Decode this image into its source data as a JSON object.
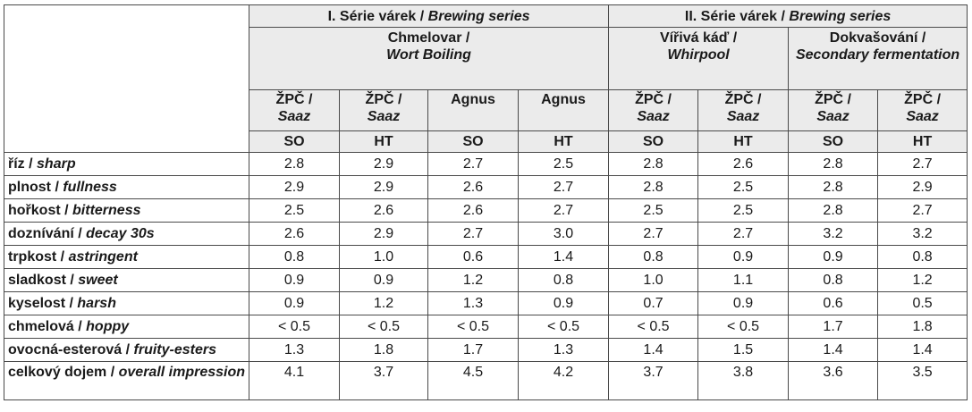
{
  "groups": [
    {
      "label": "I. Série várek",
      "label_en": "Brewing series"
    },
    {
      "label": "II. Série várek",
      "label_en": "Brewing series"
    }
  ],
  "stages": [
    {
      "label": "Chmelovar /",
      "label_en": "Wort Boiling"
    },
    {
      "label": "Vířivá káď /",
      "label_en": "Whirpool"
    },
    {
      "label": "Dokvašování /",
      "label_en": "Secondary fermentation"
    }
  ],
  "varieties": [
    {
      "cz": "ŽPČ /",
      "en": "Saaz"
    },
    {
      "cz": "ŽPČ /",
      "en": "Saaz"
    },
    {
      "cz": "Agnus",
      "en": ""
    },
    {
      "cz": "Agnus",
      "en": ""
    },
    {
      "cz": "ŽPČ /",
      "en": "Saaz"
    },
    {
      "cz": "ŽPČ /",
      "en": "Saaz"
    },
    {
      "cz": "ŽPČ /",
      "en": "Saaz"
    },
    {
      "cz": "ŽPČ /",
      "en": "Saaz"
    }
  ],
  "methods": [
    "SO",
    "HT",
    "SO",
    "HT",
    "SO",
    "HT",
    "SO",
    "HT"
  ],
  "rows": [
    {
      "cz": "říz /",
      "en": "sharp",
      "values": [
        "2.8",
        "2.9",
        "2.7",
        "2.5",
        "2.8",
        "2.6",
        "2.8",
        "2.7"
      ]
    },
    {
      "cz": "plnost /",
      "en": "fullness",
      "values": [
        "2.9",
        "2.9",
        "2.6",
        "2.7",
        "2.8",
        "2.5",
        "2.8",
        "2.9"
      ]
    },
    {
      "cz": "hořkost /",
      "en": "bitterness",
      "values": [
        "2.5",
        "2.6",
        "2.6",
        "2.7",
        "2.5",
        "2.5",
        "2.8",
        "2.7"
      ]
    },
    {
      "cz": "doznívání /",
      "en": "decay 30s",
      "values": [
        "2.6",
        "2.9",
        "2.7",
        "3.0",
        "2.7",
        "2.7",
        "3.2",
        "3.2"
      ]
    },
    {
      "cz": "trpkost /",
      "en": "astringent",
      "values": [
        "0.8",
        "1.0",
        "0.6",
        "1.4",
        "0.8",
        "0.9",
        "0.9",
        "0.8"
      ]
    },
    {
      "cz": "sladkost /",
      "en": "sweet",
      "values": [
        "0.9",
        "0.9",
        "1.2",
        "0.8",
        "1.0",
        "1.1",
        "0.8",
        "1.2"
      ]
    },
    {
      "cz": "kyselost /",
      "en": "harsh",
      "values": [
        "0.9",
        "1.2",
        "1.3",
        "0.9",
        "0.7",
        "0.9",
        "0.6",
        "0.5"
      ]
    },
    {
      "cz": "chmelová /",
      "en": "hoppy",
      "values": [
        "< 0.5",
        "< 0.5",
        "< 0.5",
        "< 0.5",
        "< 0.5",
        "< 0.5",
        "1.7",
        "1.8"
      ]
    },
    {
      "cz": "ovocná-esterová /",
      "en": "fruity-esters",
      "values": [
        "1.3",
        "1.8",
        "1.7",
        "1.3",
        "1.4",
        "1.5",
        "1.4",
        "1.4"
      ]
    },
    {
      "cz": "celkový dojem /",
      "en": "overall impression",
      "values": [
        "4.1",
        "3.7",
        "4.5",
        "4.2",
        "3.7",
        "3.8",
        "3.6",
        "3.5"
      ]
    }
  ]
}
